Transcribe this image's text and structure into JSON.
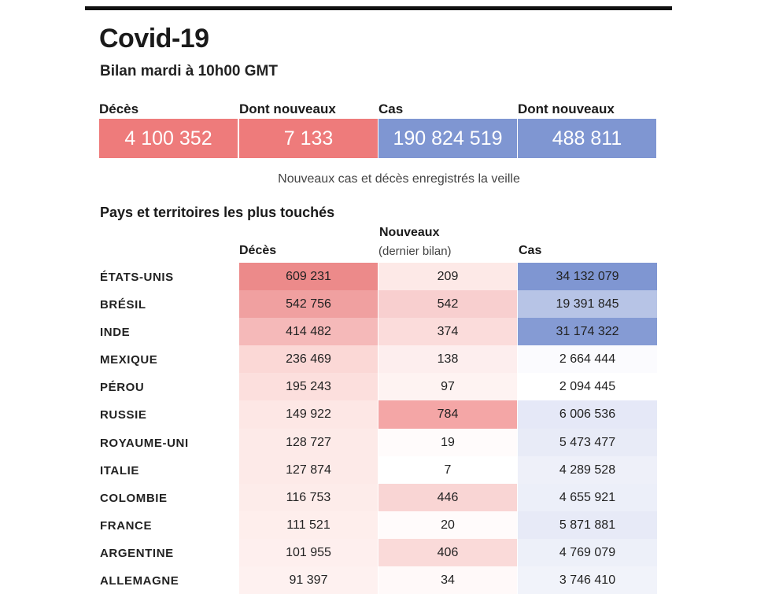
{
  "title": "Covid-19",
  "subtitle": "Bilan mardi à 10h00 GMT",
  "summary": [
    {
      "label": "Décès",
      "value": "4 100 352",
      "color": "#ee7b7b"
    },
    {
      "label": "Dont nouveaux",
      "value": "7 133",
      "color": "#ee7b7b"
    },
    {
      "label": "Cas",
      "value": "190 824 519",
      "color": "#7f96d2"
    },
    {
      "label": "Dont nouveaux",
      "value": "488 811",
      "color": "#7f96d2"
    }
  ],
  "note": "Nouveaux cas et décès enregistrés la veille",
  "section_title": "Pays et territoires les plus touchés",
  "columns": {
    "deaths": "Décès",
    "new": "Nouveaux",
    "new_sub": "(dernier bilan)",
    "cases": "Cas"
  },
  "rows": [
    {
      "country": "ÉTATS-UNIS",
      "deaths": "609 231",
      "new": "209",
      "cases": "34 132 079",
      "deaths_color": "#ec8a8a",
      "new_color": "#fde9e7",
      "cases_color": "#7f96d2"
    },
    {
      "country": "BRÉSIL",
      "deaths": "542 756",
      "new": "542",
      "cases": "19 391 845",
      "deaths_color": "#f0a0a0",
      "new_color": "#f8cfcf",
      "cases_color": "#b7c4e6"
    },
    {
      "country": "INDE",
      "deaths": "414 482",
      "new": "374",
      "cases": "31 174 322",
      "deaths_color": "#f5b9b9",
      "new_color": "#fbdcdb",
      "cases_color": "#859bd4"
    },
    {
      "country": "MEXIQUE",
      "deaths": "236 469",
      "new": "138",
      "cases": "2 664 444",
      "deaths_color": "#fbd8d6",
      "new_color": "#fdeeee",
      "cases_color": "#fbfbfe"
    },
    {
      "country": "PÉROU",
      "deaths": "195 243",
      "new": "97",
      "cases": "2 094 445",
      "deaths_color": "#fcdfdd",
      "new_color": "#fef3f2",
      "cases_color": "#ffffff"
    },
    {
      "country": "RUSSIE",
      "deaths": "149 922",
      "new": "784",
      "cases": "6 006 536",
      "deaths_color": "#fde7e5",
      "new_color": "#f4a6a6",
      "cases_color": "#e5e8f7"
    },
    {
      "country": "ROYAUME-UNI",
      "deaths": "128 727",
      "new": "19",
      "cases": "5 473 477",
      "deaths_color": "#fdeae8",
      "new_color": "#fffbfb",
      "cases_color": "#e8ebf7"
    },
    {
      "country": "ITALIE",
      "deaths": "127 874",
      "new": "7",
      "cases": "4 289 528",
      "deaths_color": "#fdeae8",
      "new_color": "#ffffff",
      "cases_color": "#eef0f9"
    },
    {
      "country": "COLOMBIE",
      "deaths": "116 753",
      "new": "446",
      "cases": "4 655 921",
      "deaths_color": "#fdecea",
      "new_color": "#f9d5d4",
      "cases_color": "#eceff9"
    },
    {
      "country": "FRANCE",
      "deaths": "111 521",
      "new": "20",
      "cases": "5 871 881",
      "deaths_color": "#feeeec",
      "new_color": "#fffbfb",
      "cases_color": "#e7eaf7"
    },
    {
      "country": "ARGENTINE",
      "deaths": "101 955",
      "new": "406",
      "cases": "4 769 079",
      "deaths_color": "#feefee",
      "new_color": "#fadad9",
      "cases_color": "#edf0f9"
    },
    {
      "country": "ALLEMAGNE",
      "deaths": "91 397",
      "new": "34",
      "cases": "3 746 410",
      "deaths_color": "#fef1f0",
      "new_color": "#fff9f9",
      "cases_color": "#f1f3fa"
    }
  ]
}
